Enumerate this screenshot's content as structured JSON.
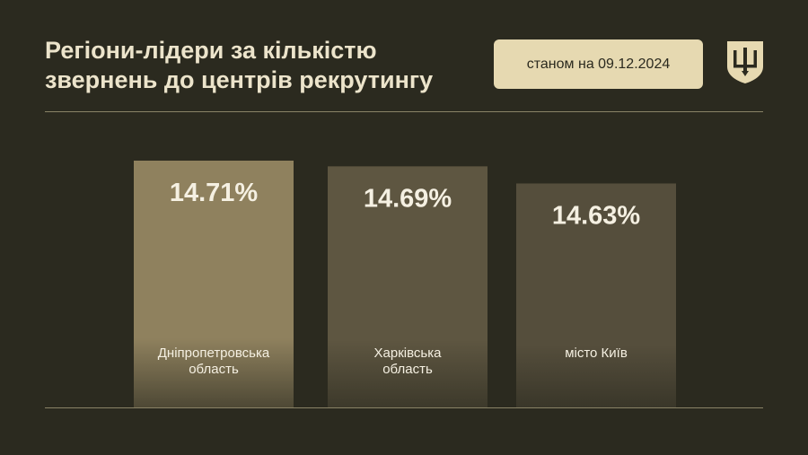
{
  "header": {
    "title": "Регіони-лідери за кількістю\nзвернень до центрів рекрутингу",
    "date_label": "станом на 09.12.2024",
    "emblem_icon": "trident-shield-icon"
  },
  "colors": {
    "background": "#2b2a1f",
    "badge": "#e6d9b1",
    "bar_highlight": "#8f815e",
    "bar_secondary": "#5e5641",
    "bar_tertiary": "#554e3c",
    "text_light": "#f5f0e2"
  },
  "chart_data": {
    "type": "bar",
    "categories": [
      "Дніпропетровська\nобласть",
      "Харківська\nобласть",
      "місто Київ"
    ],
    "values": [
      14.71,
      14.69,
      14.63
    ],
    "value_labels": [
      "14.71%",
      "14.69%",
      "14.63%"
    ],
    "unit": "%"
  }
}
